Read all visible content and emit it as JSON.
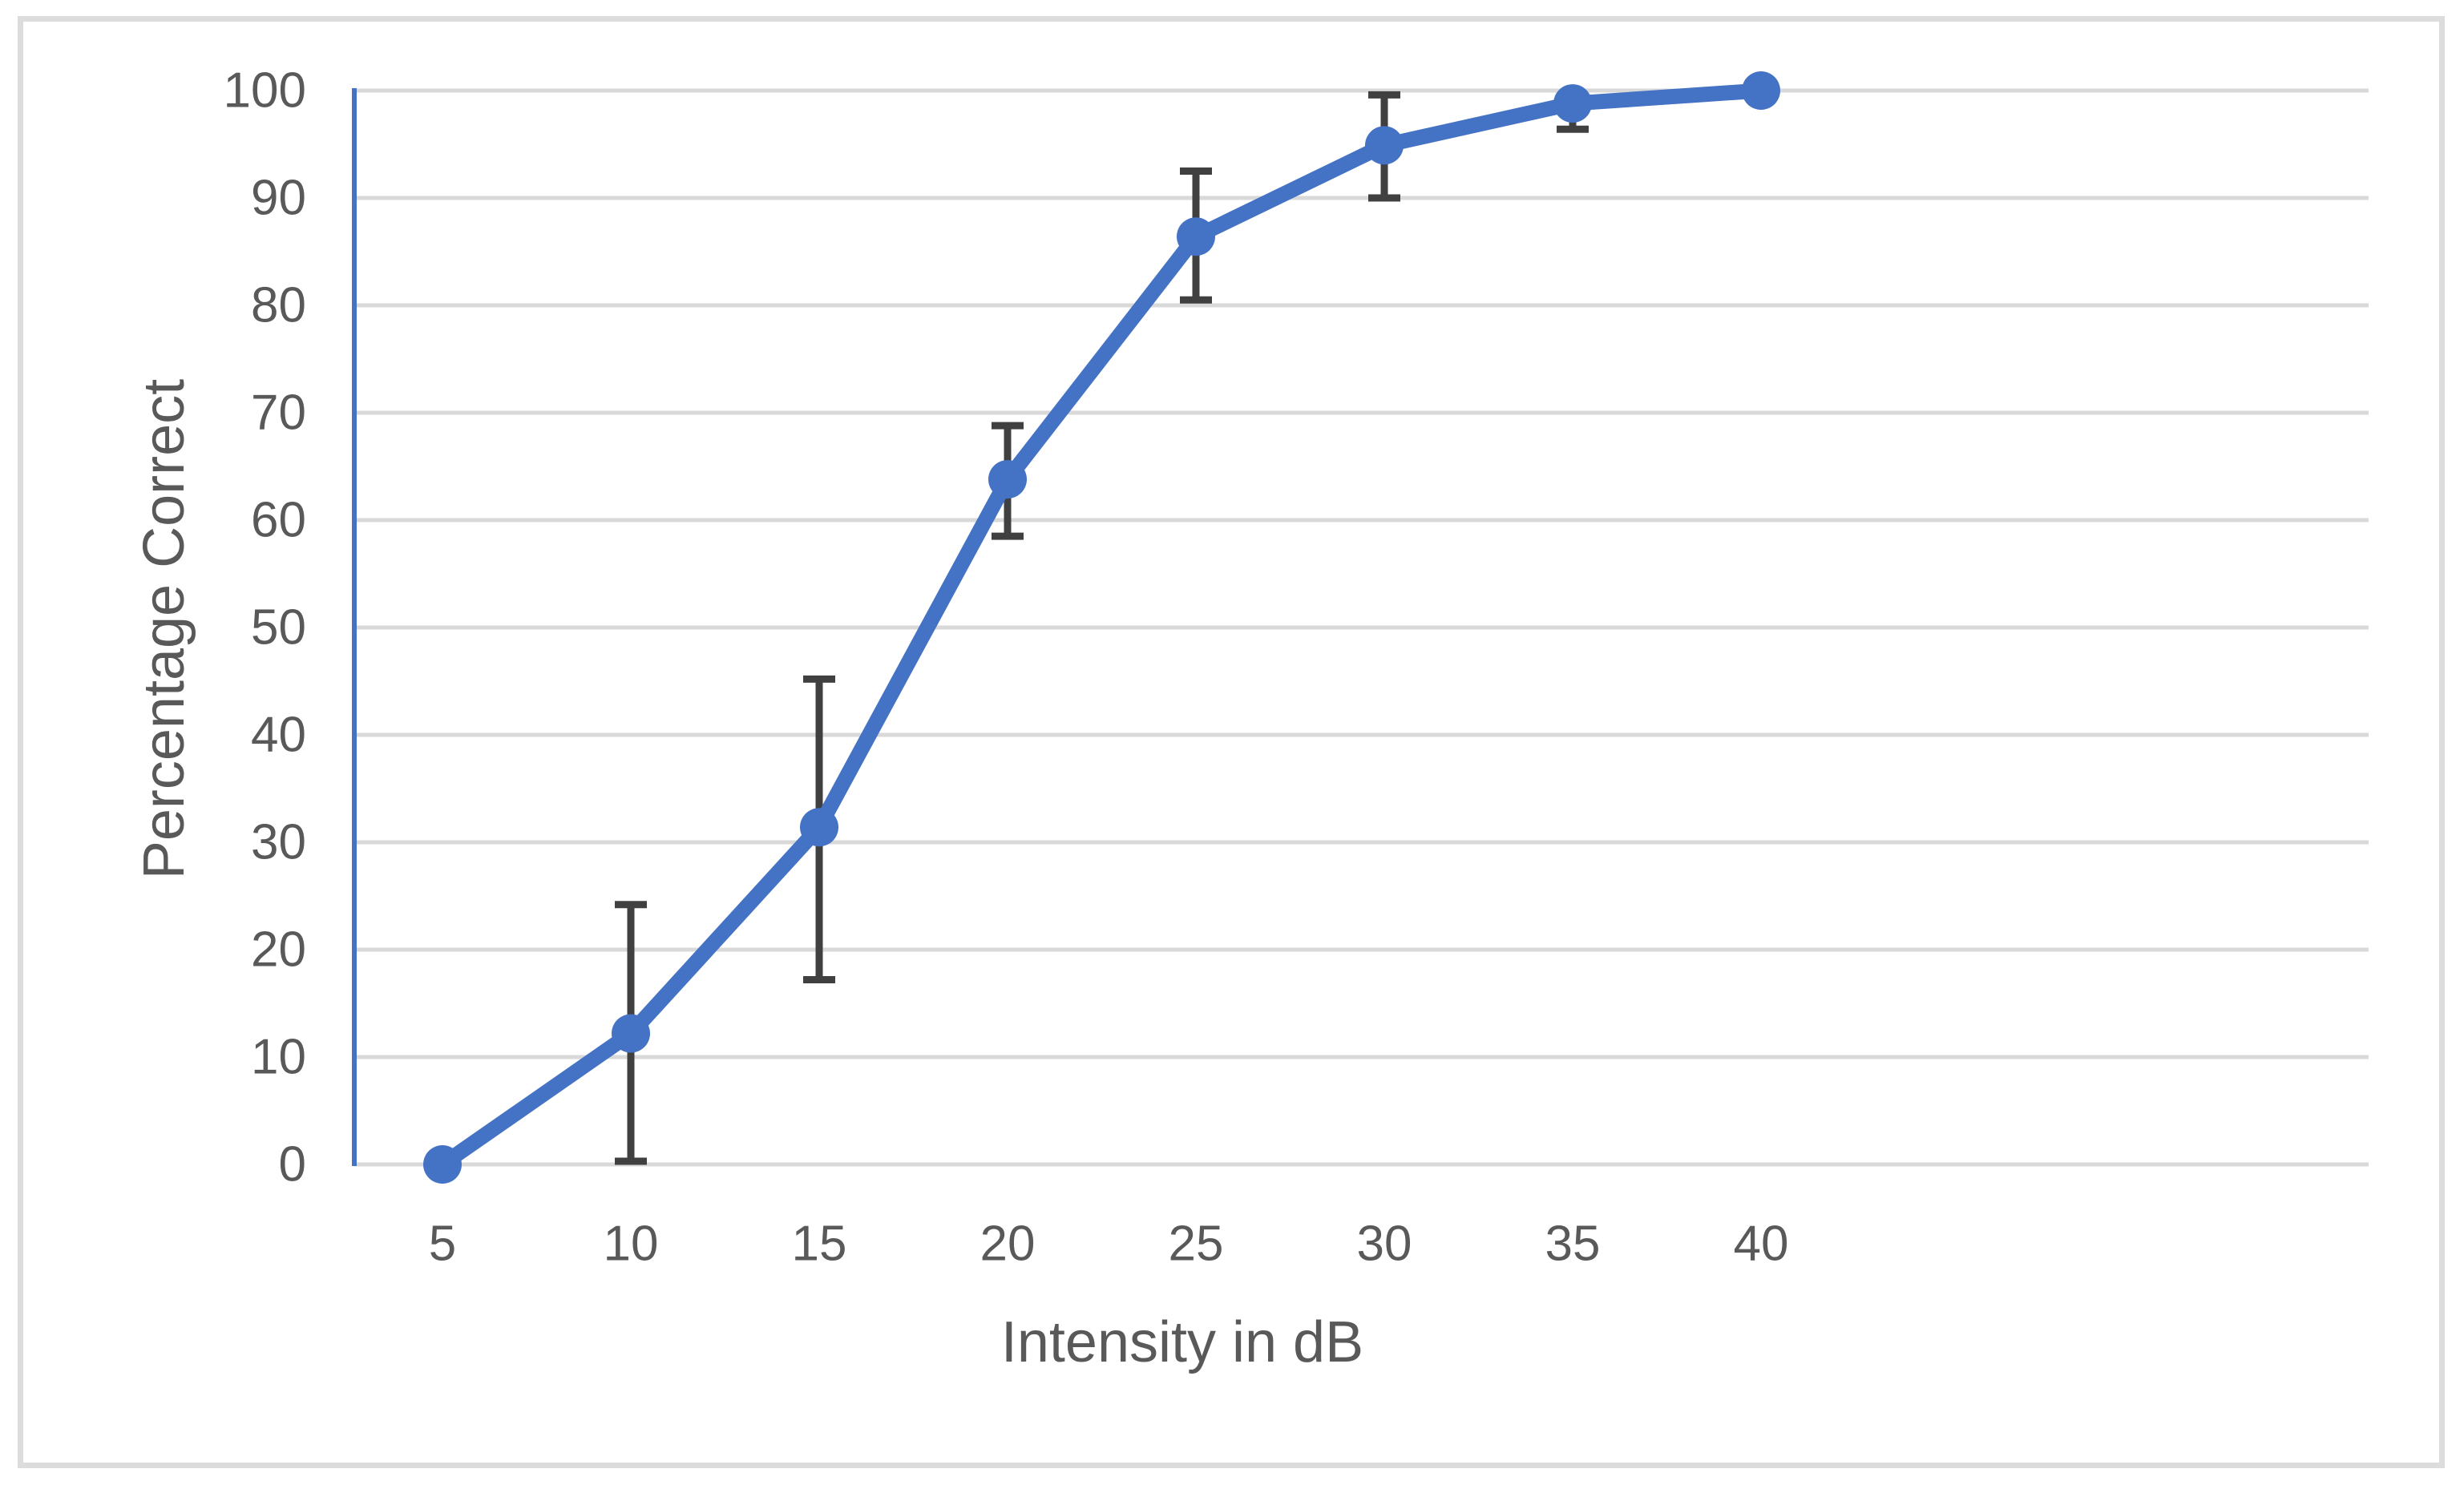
{
  "chart_data": {
    "type": "line",
    "title": "",
    "xlabel": "Intensity in dB",
    "ylabel": "Percentage Correct",
    "x": [
      5,
      10,
      15,
      20,
      25,
      30,
      35,
      40
    ],
    "x_tick_labels": [
      "5",
      "10",
      "15",
      "20",
      "25",
      "30",
      "35",
      "40"
    ],
    "series": [
      {
        "name": "Percentage Correct",
        "values": [
          0,
          12.2,
          31.4,
          63.8,
          86.4,
          94.9,
          98.8,
          100
        ],
        "error_low": [
          null,
          0.3,
          17.2,
          58.5,
          80.5,
          90.0,
          96.4,
          null
        ],
        "error_high": [
          null,
          24.2,
          45.2,
          68.8,
          92.5,
          99.6,
          100,
          null
        ]
      }
    ],
    "ylim": [
      0,
      100
    ],
    "yticks": [
      0,
      10,
      20,
      30,
      40,
      50,
      60,
      70,
      80,
      90,
      100
    ],
    "grid": true,
    "legend": false,
    "colors": {
      "line": "#4472C4",
      "marker": "#4472C4",
      "y_axis_line": "#4472C4",
      "error_bar": "#404040",
      "gridline": "#d9d9d9",
      "tick_label": "#595959",
      "axis_title": "#595959",
      "frame_border": "#dcdcdc",
      "background": "#ffffff"
    }
  }
}
